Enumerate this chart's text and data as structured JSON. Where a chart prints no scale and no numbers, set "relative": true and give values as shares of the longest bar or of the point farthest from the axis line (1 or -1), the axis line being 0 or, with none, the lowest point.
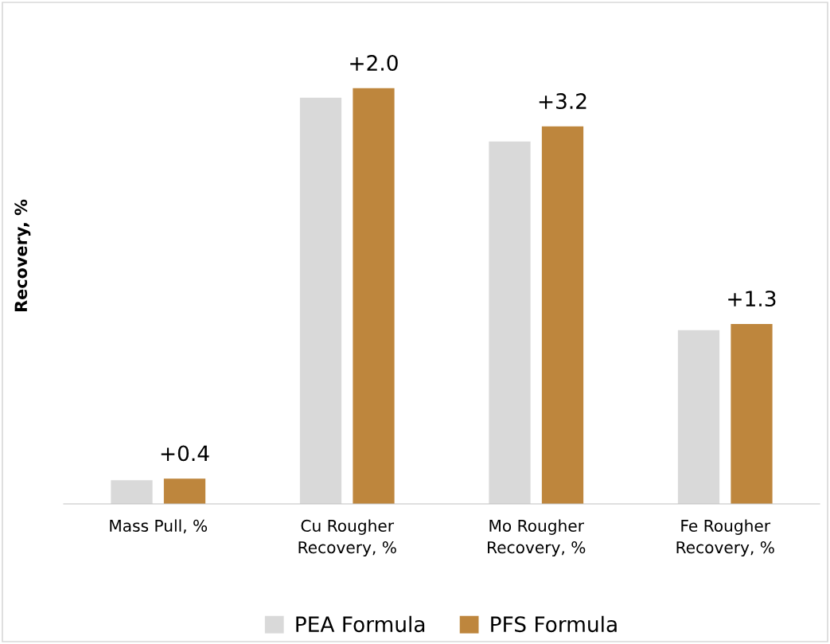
{
  "chart_data": {
    "type": "bar",
    "relative": true,
    "ylabel": "Recovery, %",
    "categories": [
      "Mass Pull, %",
      "Cu Rougher\nRecovery, %",
      "Mo Rougher\nRecovery, %",
      "Fe Rougher\nRecovery, %"
    ],
    "series": [
      {
        "name": "PEA Formula",
        "color": "#d9d9d9",
        "values": [
          0.057,
          0.977,
          0.872,
          0.418
        ]
      },
      {
        "name": "PFS Formula",
        "color": "#be863d",
        "values": [
          0.061,
          1,
          0.908,
          0.433
        ]
      }
    ],
    "annotations": [
      "+0.4",
      "+2.0",
      "+3.2",
      "+1.3"
    ],
    "legend": "bottom",
    "grid": false
  }
}
